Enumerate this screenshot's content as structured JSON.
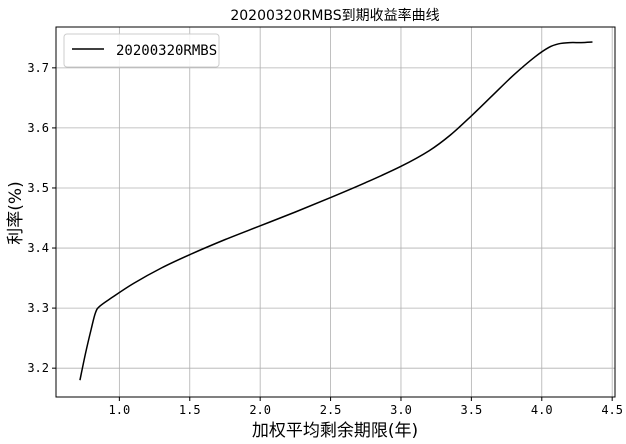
{
  "chart_data": {
    "type": "line",
    "title": "20200320RMBS到期收益率曲线",
    "xlabel": "加权平均剩余期限(年)",
    "ylabel": "利率(%)",
    "xlim": [
      0.55,
      4.52
    ],
    "ylim": [
      3.152,
      3.768
    ],
    "xticks": [
      1.0,
      1.5,
      2.0,
      2.5,
      3.0,
      3.5,
      4.0,
      4.5
    ],
    "xtick_labels": [
      "1.0",
      "1.5",
      "2.0",
      "2.5",
      "3.0",
      "3.5",
      "4.0",
      "4.5"
    ],
    "yticks": [
      3.2,
      3.3,
      3.4,
      3.5,
      3.6,
      3.7
    ],
    "ytick_labels": [
      "3.2",
      "3.3",
      "3.4",
      "3.5",
      "3.6",
      "3.7"
    ],
    "grid": true,
    "legend_position": "top-left",
    "series": [
      {
        "name": "20200320RMBS",
        "color": "#000000",
        "x": [
          0.72,
          0.76,
          0.8,
          0.83,
          0.86,
          0.95,
          1.1,
          1.3,
          1.5,
          1.75,
          2.0,
          2.25,
          2.5,
          2.75,
          3.0,
          3.2,
          3.35,
          3.5,
          3.65,
          3.8,
          3.95,
          4.05,
          4.12,
          4.2,
          4.28,
          4.36
        ],
        "y": [
          3.18,
          3.225,
          3.265,
          3.292,
          3.303,
          3.318,
          3.341,
          3.367,
          3.389,
          3.414,
          3.437,
          3.46,
          3.484,
          3.509,
          3.536,
          3.562,
          3.588,
          3.62,
          3.654,
          3.688,
          3.718,
          3.734,
          3.74,
          3.742,
          3.742,
          3.743
        ]
      }
    ]
  }
}
